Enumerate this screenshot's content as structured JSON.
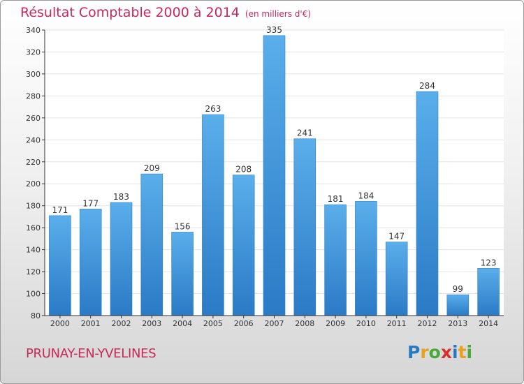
{
  "title": {
    "main": "Résultat Comptable 2000 à 2014",
    "unit": "(en milliers d'€)"
  },
  "commune": "PRUNAY-EN-YVELINES",
  "brand": {
    "letters": [
      "P",
      "r",
      "o",
      "x",
      "i",
      "t",
      "i"
    ],
    "colors": [
      "#2a7ac2",
      "#e8a020",
      "#4aa83a",
      "#d8302a",
      "#2a7ac2",
      "#e8a020",
      "#4aa83a"
    ]
  },
  "colors": {
    "bar_top": "#5aaeea",
    "bar_bottom": "#2a7ac6",
    "grid": "#e4e4e4",
    "axis": "#333333",
    "accent": "#c8285a"
  },
  "chart_data": {
    "type": "bar",
    "title": "Résultat Comptable 2000 à 2014",
    "subtitle": "(en milliers d'€)",
    "xlabel": "",
    "ylabel": "",
    "categories": [
      "2000",
      "2001",
      "2002",
      "2003",
      "2004",
      "2005",
      "2006",
      "2007",
      "2008",
      "2009",
      "2010",
      "2011",
      "2012",
      "2013",
      "2014"
    ],
    "values": [
      171,
      177,
      183,
      209,
      156,
      263,
      208,
      335,
      241,
      181,
      184,
      147,
      284,
      99,
      123
    ],
    "ylim": [
      80,
      340
    ],
    "yticks": [
      80,
      100,
      120,
      140,
      160,
      180,
      200,
      220,
      240,
      260,
      280,
      300,
      320,
      340
    ],
    "grid": true
  }
}
